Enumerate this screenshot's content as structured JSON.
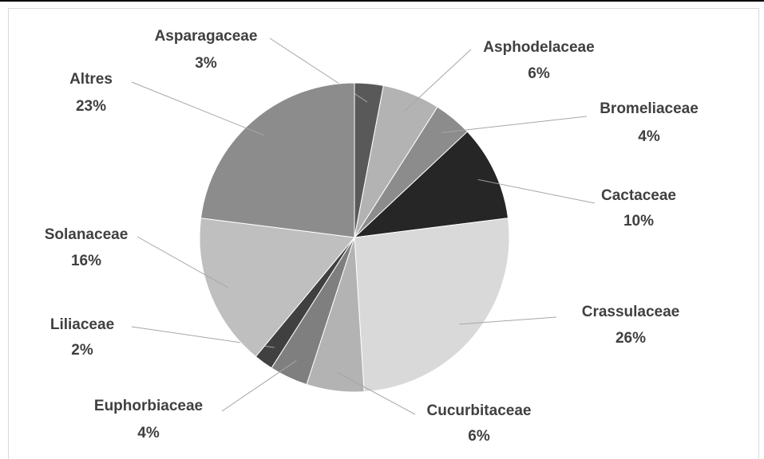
{
  "chart_data": {
    "type": "pie",
    "categories": [
      "Asparagaceae",
      "Asphodelaceae",
      "Bromeliaceae",
      "Cactaceae",
      "Crassulaceae",
      "Cucurbitaceae",
      "Euphorbiaceae",
      "Liliaceae",
      "Solanaceae",
      "Altres"
    ],
    "values": [
      3,
      6,
      4,
      10,
      26,
      6,
      4,
      2,
      16,
      23
    ],
    "value_labels": [
      "3%",
      "6%",
      "4%",
      "10%",
      "26%",
      "6%",
      "4%",
      "2%",
      "16%",
      "23%"
    ],
    "colors": [
      "#595959",
      "#b3b3b3",
      "#8c8c8c",
      "#262626",
      "#d9d9d9",
      "#b3b3b3",
      "#7f7f7f",
      "#404040",
      "#bfbfbf",
      "#8c8c8c"
    ]
  }
}
